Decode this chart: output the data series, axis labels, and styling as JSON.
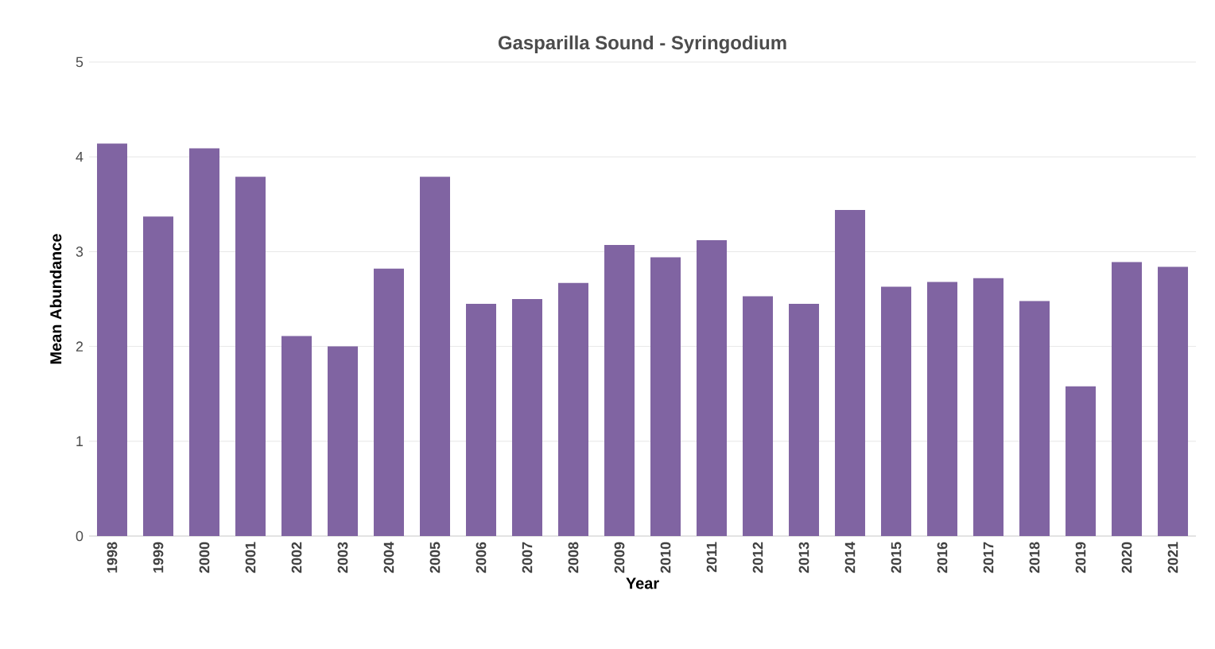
{
  "chart_data": {
    "type": "bar",
    "title": "Gasparilla Sound - Syringodium",
    "xlabel": "Year",
    "ylabel": "Mean Abundance",
    "categories": [
      "1998",
      "1999",
      "2000",
      "2001",
      "2002",
      "2003",
      "2004",
      "2005",
      "2006",
      "2007",
      "2008",
      "2009",
      "2010",
      "2011",
      "2012",
      "2013",
      "2014",
      "2015",
      "2016",
      "2017",
      "2018",
      "2019",
      "2020",
      "2021"
    ],
    "values": [
      4.14,
      3.37,
      4.09,
      3.79,
      2.11,
      2.0,
      2.82,
      3.79,
      2.45,
      2.5,
      2.67,
      3.07,
      2.94,
      3.12,
      2.53,
      2.45,
      3.44,
      2.63,
      2.68,
      2.72,
      2.48,
      1.58,
      2.89,
      2.84
    ],
    "color": "#8064a2",
    "ylim": [
      0,
      5
    ],
    "yticks": [
      0,
      1,
      2,
      3,
      4,
      5
    ],
    "grid": "y"
  }
}
